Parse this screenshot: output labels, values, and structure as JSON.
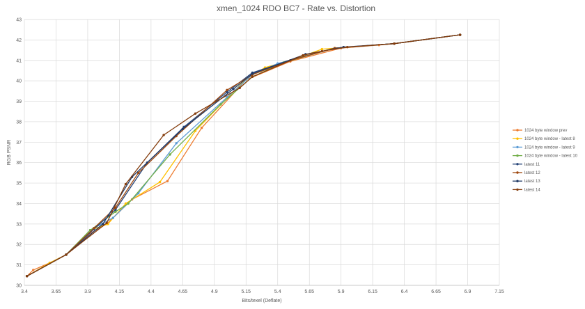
{
  "chart_data": {
    "type": "line",
    "title": "xmen_1024 RDO BC7 - Rate vs. Distortion",
    "xlabel": "Bits/texel (Deflate)",
    "ylabel": "RGB PSNR",
    "xlim": [
      3.4,
      7.15
    ],
    "ylim": [
      30,
      43
    ],
    "x_ticks": [
      "3.4",
      "3.65",
      "3.9",
      "4.15",
      "4.4",
      "4.65",
      "4.9",
      "5.15",
      "5.4",
      "5.65",
      "5.9",
      "6.15",
      "6.4",
      "6.65",
      "6.9",
      "7.15"
    ],
    "y_ticks": [
      "30",
      "31",
      "32",
      "33",
      "34",
      "35",
      "36",
      "37",
      "38",
      "39",
      "40",
      "41",
      "42",
      "43"
    ],
    "grid": true,
    "legend_position": "right",
    "series": [
      {
        "name": "1024 byte window prev",
        "color": "#ED7D31",
        "marker": "circle",
        "points": [
          [
            3.42,
            30.45
          ],
          [
            3.47,
            30.75
          ],
          [
            3.6,
            31.1
          ],
          [
            3.73,
            31.5
          ],
          [
            3.92,
            32.55
          ],
          [
            4.05,
            33.0
          ],
          [
            4.25,
            34.2
          ],
          [
            4.53,
            35.1
          ],
          [
            4.8,
            37.7
          ],
          [
            5.15,
            40.05
          ],
          [
            5.5,
            40.95
          ],
          [
            5.9,
            41.6
          ],
          [
            6.2,
            41.75
          ],
          [
            6.32,
            41.82
          ],
          [
            6.84,
            42.25
          ]
        ]
      },
      {
        "name": "1024 byte window - latest 8",
        "color": "#FFC000",
        "marker": "circle",
        "points": [
          [
            3.42,
            30.45
          ],
          [
            3.6,
            31.1
          ],
          [
            3.73,
            31.5
          ],
          [
            3.92,
            32.7
          ],
          [
            4.06,
            33.0
          ],
          [
            4.2,
            34.0
          ],
          [
            4.47,
            35.05
          ],
          [
            4.75,
            37.55
          ],
          [
            5.15,
            40.1
          ],
          [
            5.3,
            40.65
          ],
          [
            5.5,
            41.0
          ],
          [
            5.75,
            41.55
          ],
          [
            6.32,
            41.82
          ],
          [
            6.84,
            42.25
          ]
        ]
      },
      {
        "name": "1024 byte window - latest 9",
        "color": "#5B9BD5",
        "marker": "circle",
        "points": [
          [
            3.42,
            30.45
          ],
          [
            3.73,
            31.5
          ],
          [
            3.92,
            32.7
          ],
          [
            4.1,
            33.3
          ],
          [
            4.3,
            34.5
          ],
          [
            4.6,
            36.95
          ],
          [
            5.0,
            39.2
          ],
          [
            5.2,
            40.3
          ],
          [
            5.4,
            40.85
          ],
          [
            5.85,
            41.6
          ],
          [
            6.32,
            41.82
          ],
          [
            6.84,
            42.25
          ]
        ]
      },
      {
        "name": "1024 byte window - latest 10",
        "color": "#70AD47",
        "marker": "circle",
        "points": [
          [
            3.42,
            30.45
          ],
          [
            3.73,
            31.5
          ],
          [
            3.92,
            32.7
          ],
          [
            4.12,
            33.6
          ],
          [
            4.22,
            34.0
          ],
          [
            4.55,
            36.4
          ],
          [
            4.95,
            38.85
          ],
          [
            5.2,
            40.2
          ],
          [
            5.45,
            40.9
          ],
          [
            5.85,
            41.6
          ],
          [
            6.32,
            41.82
          ],
          [
            6.84,
            42.25
          ]
        ]
      },
      {
        "name": "latest 11",
        "color": "#264478",
        "marker": "circle",
        "points": [
          [
            3.42,
            30.45
          ],
          [
            3.73,
            31.5
          ],
          [
            3.95,
            32.75
          ],
          [
            4.12,
            33.7
          ],
          [
            4.37,
            36.0
          ],
          [
            4.66,
            37.75
          ],
          [
            5.0,
            39.45
          ],
          [
            5.2,
            40.4
          ],
          [
            5.5,
            41.0
          ],
          [
            5.85,
            41.6
          ],
          [
            6.32,
            41.82
          ],
          [
            6.84,
            42.25
          ]
        ]
      },
      {
        "name": "latest 12",
        "color": "#9E480E",
        "marker": "circle",
        "points": [
          [
            3.42,
            30.45
          ],
          [
            3.73,
            31.5
          ],
          [
            3.95,
            32.8
          ],
          [
            4.12,
            33.8
          ],
          [
            4.3,
            35.5
          ],
          [
            4.6,
            37.3
          ],
          [
            5.0,
            39.55
          ],
          [
            5.2,
            40.3
          ],
          [
            5.5,
            41.0
          ],
          [
            5.85,
            41.6
          ],
          [
            6.32,
            41.82
          ],
          [
            6.84,
            42.25
          ]
        ]
      },
      {
        "name": "latest 13",
        "color": "#1F3864",
        "marker": "circle",
        "points": [
          [
            3.42,
            30.45
          ],
          [
            3.73,
            31.5
          ],
          [
            4.02,
            33.0
          ],
          [
            4.25,
            35.3
          ],
          [
            4.65,
            37.65
          ],
          [
            5.05,
            39.6
          ],
          [
            5.2,
            40.35
          ],
          [
            5.62,
            41.3
          ],
          [
            5.92,
            41.65
          ],
          [
            6.32,
            41.82
          ],
          [
            6.84,
            42.25
          ]
        ]
      },
      {
        "name": "latest 14",
        "color": "#843C0C",
        "marker": "circle",
        "points": [
          [
            3.42,
            30.45
          ],
          [
            3.73,
            31.5
          ],
          [
            4.05,
            33.05
          ],
          [
            4.2,
            34.95
          ],
          [
            4.5,
            37.35
          ],
          [
            4.75,
            38.4
          ],
          [
            5.1,
            39.65
          ],
          [
            5.2,
            40.2
          ],
          [
            5.6,
            41.25
          ],
          [
            5.75,
            41.45
          ],
          [
            5.95,
            41.65
          ],
          [
            6.32,
            41.82
          ],
          [
            6.84,
            42.25
          ]
        ]
      }
    ]
  }
}
